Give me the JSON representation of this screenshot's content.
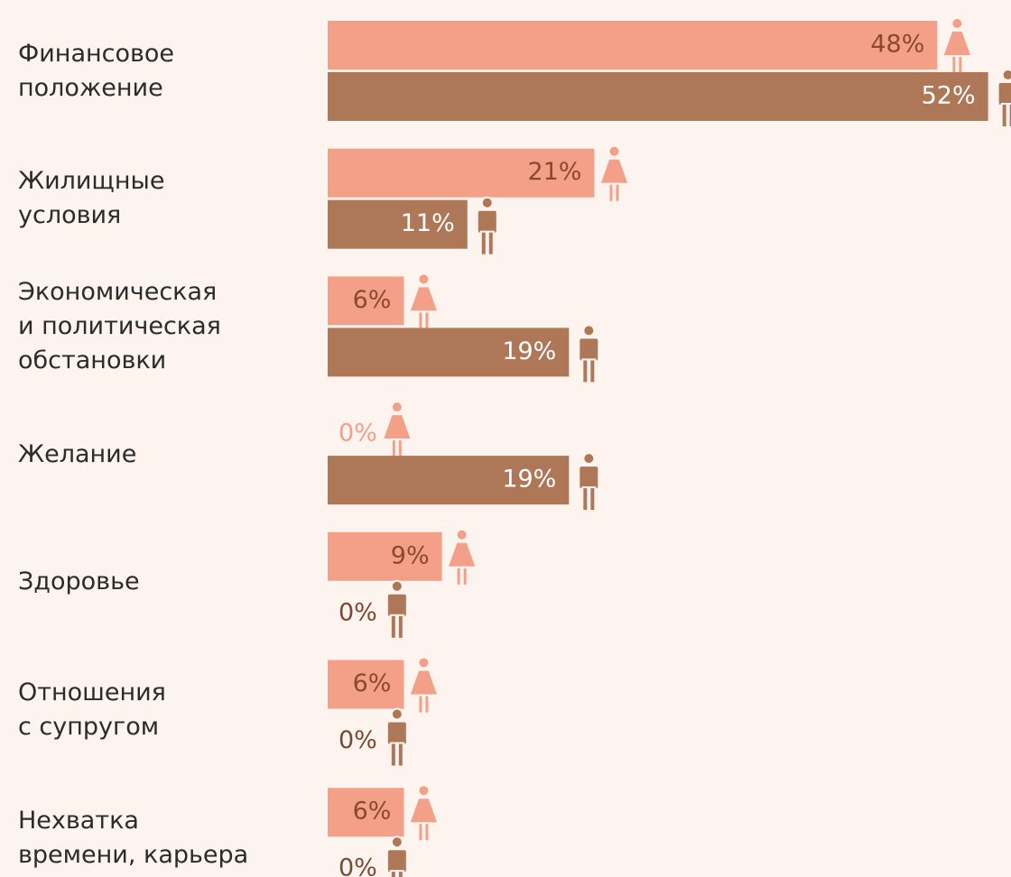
{
  "chart_data": {
    "type": "bar",
    "categories": [
      "Финансовое\nположение",
      "Жилищные\nусловия",
      "Экономическая\nи политическая\nобстановки",
      "Желание",
      "Здоровье",
      "Отношения\nс супругом",
      "Нехватка\nвремени, карьера"
    ],
    "series": [
      {
        "color": "#f4a088",
        "values": [
          48,
          21,
          6,
          0,
          9,
          6,
          6
        ],
        "value_labels": [
          "48%",
          "21%",
          "6%",
          "0%",
          "9%",
          "6%",
          "6%"
        ]
      },
      {
        "color": "#ae7858",
        "values": [
          52,
          11,
          19,
          19,
          0,
          0,
          0
        ],
        "value_labels": [
          "52%",
          "11%",
          "19%",
          "19%",
          "0%",
          "0%",
          "0%"
        ]
      }
    ]
  }
}
